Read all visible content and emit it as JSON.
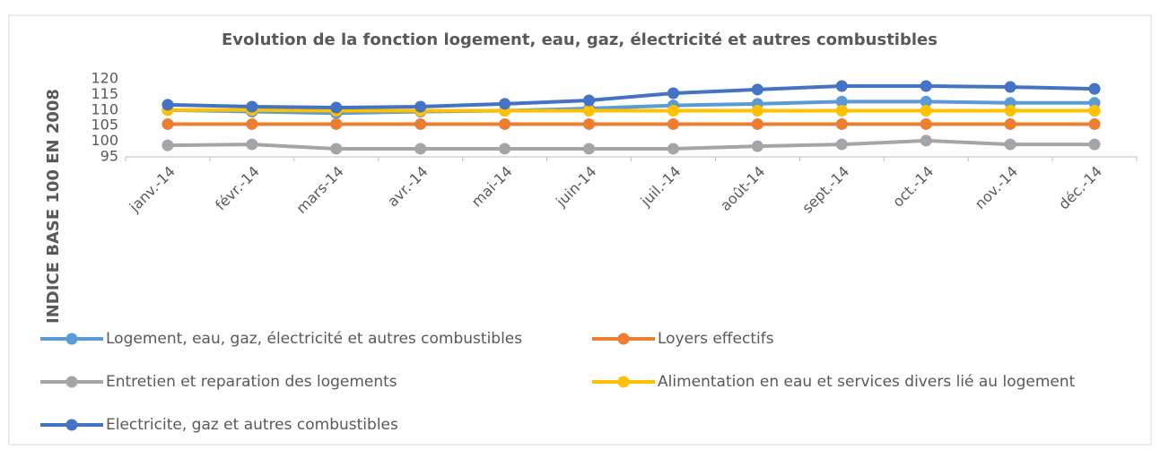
{
  "chart_data": {
    "type": "line",
    "title": "Evolution de la fonction logement, eau, gaz, électricité et autres combustibles",
    "y_axis_label": "INDICE BASE 100 EN 2008",
    "categories": [
      "janv.-14",
      "févr.-14",
      "mars-14",
      "avr.-14",
      "mai-14",
      "juin-14",
      "juil.-14",
      "août-14",
      "sept.-14",
      "oct.-14",
      "nov.-14",
      "déc.-14"
    ],
    "series": [
      {
        "name": "Logement, eau, gaz, électricité et autres combustibles",
        "color": "#5b9bd5",
        "values": [
          110,
          109.5,
          109,
          109.5,
          109.8,
          110.5,
          111.5,
          112,
          112.7,
          112.7,
          112.3,
          112.3
        ]
      },
      {
        "name": "Loyers effectifs",
        "color": "#ed7d31",
        "values": [
          105.5,
          105.5,
          105.5,
          105.5,
          105.5,
          105.5,
          105.5,
          105.5,
          105.5,
          105.5,
          105.5,
          105.5
        ]
      },
      {
        "name": "Entretien et reparation des logements",
        "color": "#a5a5a5",
        "values": [
          98.7,
          99,
          97.6,
          97.6,
          97.6,
          97.6,
          97.6,
          98.4,
          99,
          100.2,
          99,
          99
        ]
      },
      {
        "name": "Alimentation en eau et services divers lié au logement",
        "color": "#ffc000",
        "values": [
          110,
          110,
          109.8,
          109.8,
          109.8,
          109.8,
          109.8,
          109.8,
          109.8,
          109.8,
          109.8,
          109.8
        ]
      },
      {
        "name": "Electricite, gaz et autres combustibles",
        "color": "#4472c4",
        "values": [
          111.7,
          111.1,
          110.8,
          111.1,
          112,
          113.1,
          115.4,
          116.6,
          117.7,
          117.7,
          117.4,
          116.8
        ]
      }
    ],
    "ylim": [
      95,
      120
    ],
    "yticks": [
      95,
      100,
      105,
      110,
      115,
      120
    ],
    "grid": false
  }
}
